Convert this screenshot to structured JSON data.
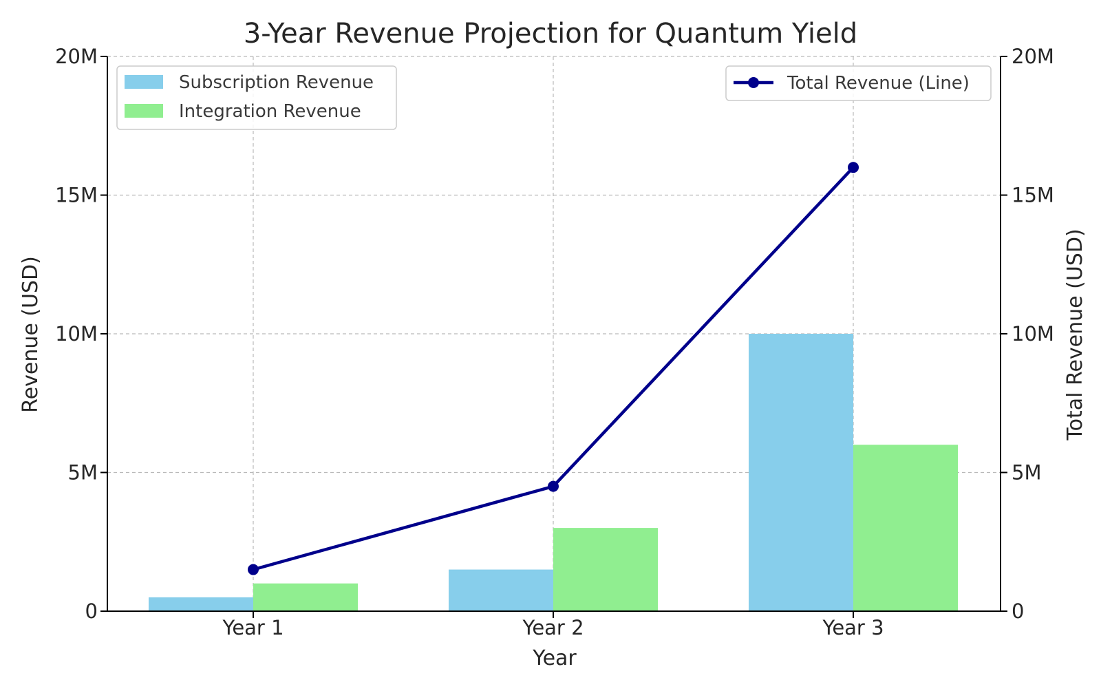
{
  "chart_data": {
    "type": "bar",
    "title": "3-Year Revenue Projection for Quantum Yield",
    "xlabel": "Year",
    "ylabel": "Revenue (USD)",
    "y2label": "Total Revenue (USD)",
    "categories": [
      "Year 1",
      "Year 2",
      "Year 3"
    ],
    "ylim": [
      0,
      20000000
    ],
    "y2lim": [
      0,
      20000000
    ],
    "yticks": [
      0,
      5000000,
      10000000,
      15000000,
      20000000
    ],
    "ytick_labels": [
      "0",
      "5M",
      "10M",
      "15M",
      "20M"
    ],
    "grid": true,
    "series": [
      {
        "name": "Subscription Revenue",
        "kind": "bar",
        "axis": "left",
        "color": "#87ceeb",
        "values": [
          500000,
          1500000,
          10000000
        ]
      },
      {
        "name": "Integration Revenue",
        "kind": "bar",
        "axis": "left",
        "color": "#90ee90",
        "values": [
          1000000,
          3000000,
          6000000
        ]
      },
      {
        "name": "Total Revenue (Line)",
        "kind": "line",
        "axis": "right",
        "color": "#00008b",
        "marker": "circle",
        "values": [
          1500000,
          4500000,
          16000000
        ]
      }
    ],
    "legends": [
      {
        "placement": "upper-left",
        "entries": [
          "Subscription Revenue",
          "Integration Revenue"
        ]
      },
      {
        "placement": "upper-right",
        "entries": [
          "Total Revenue (Line)"
        ]
      }
    ]
  }
}
